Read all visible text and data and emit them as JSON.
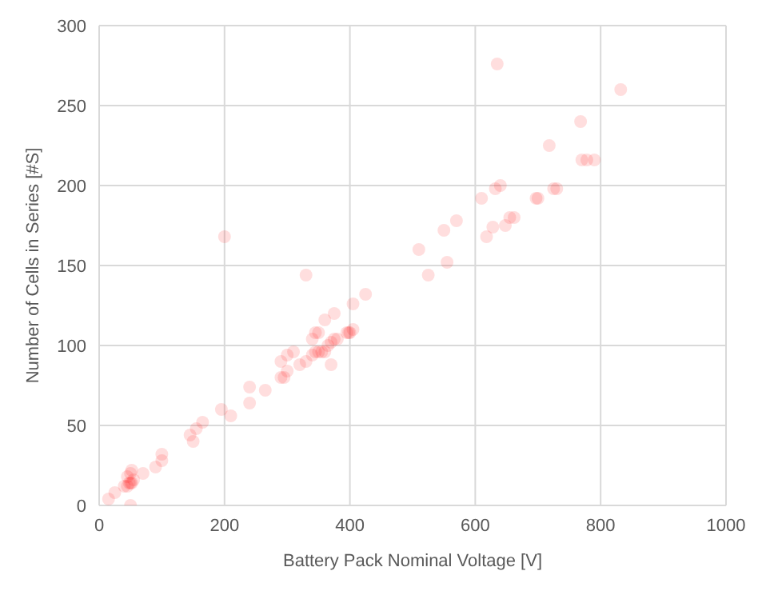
{
  "chart_data": {
    "type": "scatter",
    "xlabel": "Battery Pack Nominal Voltage [V]",
    "ylabel": "Number of Cells in Series [#S]",
    "xlim": [
      0,
      1000
    ],
    "xticks": [
      0,
      200,
      400,
      600,
      800,
      1000
    ],
    "ylim": [
      0,
      300
    ],
    "yticks": [
      0,
      50,
      100,
      150,
      200,
      250,
      300
    ],
    "grid": true,
    "marker": "circle",
    "legend": false,
    "series": [
      {
        "color": "#ff0000",
        "x": [
          15,
          25,
          40,
          45,
          48,
          50,
          52,
          55,
          50,
          52,
          45,
          50,
          70,
          90,
          100,
          100,
          150,
          145,
          155,
          165,
          195,
          210,
          200,
          240,
          240,
          265,
          290,
          295,
          300,
          290,
          300,
          310,
          320,
          330,
          340,
          345,
          350,
          355,
          360,
          345,
          350,
          340,
          330,
          370,
          365,
          370,
          375,
          380,
          360,
          375,
          395,
          400,
          398,
          405,
          405,
          425,
          510,
          525,
          550,
          555,
          570,
          610,
          618,
          628,
          632,
          640,
          635,
          648,
          655,
          662,
          700,
          697,
          718,
          725,
          730,
          768,
          770,
          778,
          790,
          832
        ],
        "values": [
          4,
          8,
          12,
          12,
          14,
          14,
          14,
          16,
          20,
          22,
          18,
          0,
          20,
          24,
          28,
          32,
          40,
          44,
          48,
          52,
          60,
          56,
          168,
          64,
          74,
          72,
          80,
          80,
          84,
          90,
          94,
          96,
          88,
          90,
          94,
          96,
          96,
          96,
          96,
          108,
          108,
          104,
          144,
          88,
          100,
          102,
          104,
          104,
          116,
          120,
          108,
          108,
          108,
          110,
          126,
          132,
          160,
          144,
          172,
          152,
          178,
          192,
          168,
          174,
          198,
          200,
          276,
          175,
          180,
          180,
          192,
          192,
          225,
          198,
          198,
          240,
          216,
          216,
          216,
          260
        ]
      }
    ]
  }
}
